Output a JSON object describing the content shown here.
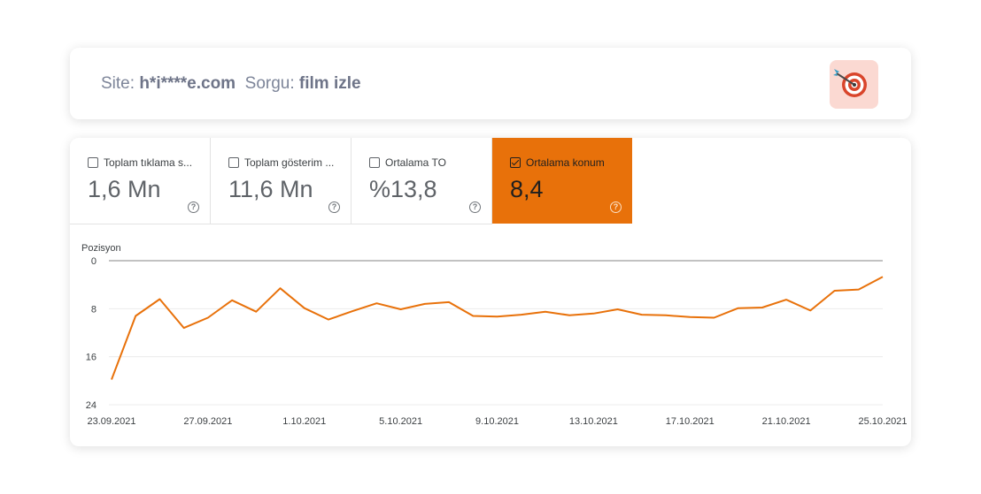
{
  "query_card": {
    "site_label": "Site:",
    "site_value": "h*i****e.com",
    "query_label": "Sorgu:",
    "query_value": "film izle",
    "icon": "target-icon"
  },
  "metrics": [
    {
      "label": "Toplam tıklama s...",
      "value": "1,6 Mn",
      "checked": false
    },
    {
      "label": "Toplam gösterim ...",
      "value": "11,6 Mn",
      "checked": false
    },
    {
      "label": "Ortalama TO",
      "value": "%13,8",
      "checked": false
    },
    {
      "label": "Ortalama konum",
      "value": "8,4",
      "checked": true
    }
  ],
  "colors": {
    "accent": "#e8710a",
    "line": "#e8710a"
  },
  "chart_data": {
    "type": "line",
    "ylabel": "Pozisyon",
    "y_inverted": true,
    "ylim": [
      0,
      24
    ],
    "y_ticks": [
      "0",
      "8",
      "16",
      "24"
    ],
    "x_ticks": [
      "23.09.2021",
      "27.09.2021",
      "1.10.2021",
      "5.10.2021",
      "9.10.2021",
      "13.10.2021",
      "17.10.2021",
      "21.10.2021",
      "25.10.2021"
    ],
    "grid": true,
    "series": [
      {
        "x": [
          "23.09.2021",
          "24.09.2021",
          "25.09.2021",
          "26.09.2021",
          "27.09.2021",
          "28.09.2021",
          "29.09.2021",
          "30.09.2021",
          "1.10.2021",
          "2.10.2021",
          "3.10.2021",
          "4.10.2021",
          "5.10.2021",
          "6.10.2021",
          "7.10.2021",
          "8.10.2021",
          "9.10.2021",
          "10.10.2021",
          "11.10.2021",
          "12.10.2021",
          "13.10.2021",
          "14.10.2021",
          "15.10.2021",
          "16.10.2021",
          "17.10.2021",
          "18.10.2021",
          "19.10.2021",
          "20.10.2021",
          "21.10.2021",
          "22.10.2021",
          "23.10.2021",
          "24.10.2021",
          "25.10.2021"
        ],
        "values": [
          19.8,
          9.2,
          6.4,
          11.2,
          9.5,
          6.6,
          8.5,
          4.6,
          7.9,
          9.8,
          8.4,
          7.1,
          8.1,
          7.2,
          6.9,
          9.2,
          9.3,
          9.0,
          8.5,
          9.1,
          8.8,
          8.1,
          9.0,
          9.1,
          9.4,
          9.5,
          7.9,
          7.8,
          6.5,
          8.3,
          5.0,
          4.8,
          2.7
        ]
      }
    ]
  }
}
